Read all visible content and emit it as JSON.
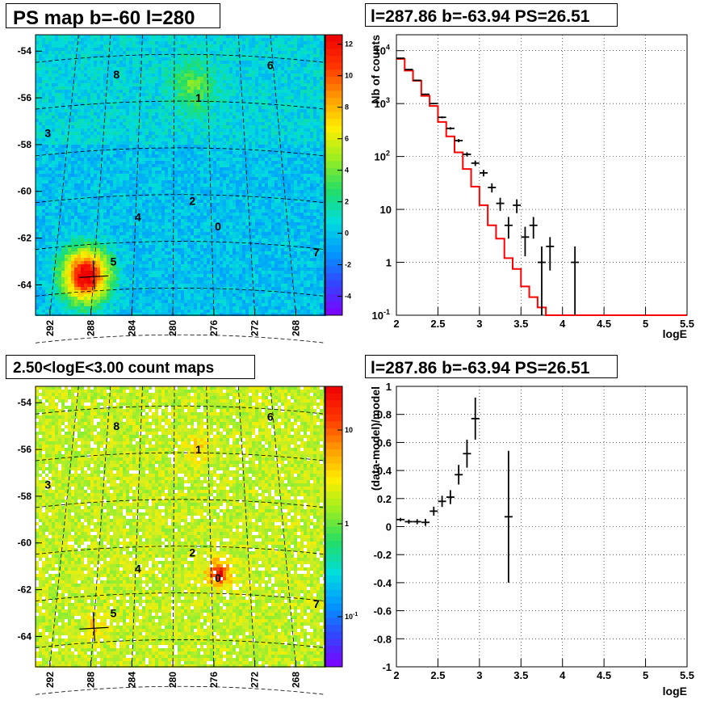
{
  "panels": {
    "ps_map": {
      "title": "PS map b=-60 l=280",
      "y_ticks": [
        "-54",
        "-56",
        "-58",
        "-60",
        "-62",
        "-64"
      ],
      "x_ticks": [
        "292",
        "288",
        "284",
        "280",
        "276",
        "272",
        "268"
      ],
      "colorbar_ticks": [
        "12",
        "10",
        "8",
        "6",
        "4",
        "2",
        "0",
        "-2",
        "-4"
      ],
      "source_labels": [
        "6",
        "8",
        "1",
        "3",
        "2",
        "4",
        "0",
        "7",
        "5"
      ]
    },
    "count_map": {
      "title": "2.50<logE<3.00 count maps",
      "y_ticks": [
        "-54",
        "-56",
        "-58",
        "-60",
        "-62",
        "-64"
      ],
      "x_ticks": [
        "292",
        "288",
        "284",
        "280",
        "276",
        "272",
        "268"
      ],
      "colorbar_ticks": [
        "10",
        "1",
        "10"
      ],
      "colorbar_tick_sup": [
        "",
        "",
        "-1"
      ],
      "source_labels": [
        "6",
        "8",
        "1",
        "3",
        "2",
        "4",
        "0",
        "7",
        "5"
      ]
    },
    "spectrum": {
      "title": "l=287.86 b=-63.94 PS=26.51"
    },
    "residual": {
      "title": "l=287.86 b=-63.94 PS=26.51"
    }
  },
  "chart_data": [
    {
      "type": "heatmap",
      "title": "PS map b=-60 l=280",
      "xlabel": "",
      "ylabel": "",
      "x_ticks": [
        292,
        288,
        284,
        280,
        276,
        272,
        268
      ],
      "y_ticks": [
        -54,
        -56,
        -58,
        -60,
        -62,
        -64
      ],
      "z_range": [
        -5,
        12
      ],
      "z_ticks": [
        12,
        10,
        8,
        6,
        4,
        2,
        0,
        -2,
        -4
      ],
      "colormap": [
        "#7f00ff",
        "#3344ff",
        "#0099ff",
        "#00dddd",
        "#22dd66",
        "#99ee22",
        "#ffee00",
        "#ff9900",
        "#ff3300",
        "#ee0000"
      ],
      "background_level": 0.5,
      "hotspots": [
        {
          "l": 288.5,
          "b": -63.6,
          "peak": 12,
          "label": ""
        },
        {
          "l": 278,
          "b": -55.5,
          "peak": 3,
          "label": "1"
        }
      ]
    },
    {
      "type": "heatmap",
      "title": "2.50<logE<3.00 count maps",
      "xlabel": "",
      "ylabel": "",
      "x_ticks": [
        292,
        288,
        284,
        280,
        276,
        272,
        268
      ],
      "y_ticks": [
        -54,
        -56,
        -58,
        -60,
        -62,
        -64
      ],
      "log_z": true,
      "z_ticks": [
        "10",
        "1",
        "10^-1"
      ],
      "hotspots": [
        {
          "l": 277.5,
          "b": -56.0,
          "peak": 3,
          "label": "1"
        },
        {
          "l": 275.5,
          "b": -61.3,
          "peak": 8,
          "label": "0"
        },
        {
          "l": 287.5,
          "b": -63.6,
          "peak": 3,
          "label": ""
        }
      ]
    },
    {
      "type": "line",
      "title": "l=287.86 b=-63.94 PS=26.51",
      "xlabel": "logE",
      "ylabel": "Nb of counts",
      "xlim": [
        2,
        5.5
      ],
      "ylim": [
        0.1,
        20000
      ],
      "log_y": true,
      "grid": true,
      "x_ticks": [
        2,
        2.5,
        3,
        3.5,
        4,
        4.5,
        5,
        5.5
      ],
      "y_ticks": [
        0.1,
        1,
        10,
        100,
        1000,
        10000
      ],
      "y_tick_labels": [
        "10^-1",
        "1",
        "10",
        "10^2",
        "10^3",
        "10^4"
      ],
      "series": [
        {
          "color": "#ff0000",
          "bin_width": 0.1,
          "x": [
            2.0,
            2.1,
            2.2,
            2.3,
            2.4,
            2.5,
            2.6,
            2.7,
            2.8,
            2.9,
            3.0,
            3.1,
            3.2,
            3.3,
            3.4,
            3.5,
            3.6,
            3.7,
            3.8,
            3.9,
            4.0,
            4.1,
            4.2,
            4.3,
            4.4,
            4.5,
            4.6,
            4.7,
            4.8,
            4.9,
            5.0,
            5.1,
            5.2,
            5.3,
            5.4
          ],
          "y": [
            7000,
            4200,
            2700,
            1400,
            900,
            450,
            240,
            120,
            58,
            27,
            12,
            5,
            2.8,
            1.2,
            0.75,
            0.35,
            0.22,
            0.14,
            0.1,
            0.1,
            0.1,
            0.1,
            0.1,
            0.1,
            0.1,
            0.1,
            0.1,
            0.1,
            0.1,
            0.1,
            0.1,
            0.1,
            0.1,
            0.1,
            0.1
          ]
        },
        {
          "color": "#000000",
          "errorbars": true,
          "x": [
            2.05,
            2.15,
            2.25,
            2.35,
            2.45,
            2.55,
            2.65,
            2.75,
            2.85,
            2.95,
            3.05,
            3.15,
            3.25,
            3.35,
            3.45,
            3.55,
            3.65,
            3.75,
            3.85,
            4.15
          ],
          "y": [
            7200,
            4400,
            2750,
            1500,
            1000,
            550,
            340,
            200,
            110,
            75,
            49,
            26,
            13,
            5,
            12,
            3,
            5,
            1,
            2,
            1
          ],
          "err_low": [
            85,
            66,
            52,
            38,
            30,
            23,
            18,
            14,
            10,
            8.7,
            7,
            5.1,
            3.6,
            2.2,
            3.5,
            1.7,
            2.2,
            0.9,
            1.3,
            0.9
          ],
          "err_high": [
            85,
            66,
            52,
            38,
            30,
            23,
            18,
            14,
            10,
            8.7,
            7,
            5.1,
            3.6,
            2.2,
            3.5,
            1.7,
            2.2,
            1,
            1,
            1
          ]
        }
      ]
    },
    {
      "type": "scatter",
      "title": "l=287.86 b=-63.94 PS=26.51",
      "xlabel": "logE",
      "ylabel": "(data-model)/model",
      "xlim": [
        2,
        5.5
      ],
      "ylim": [
        -1,
        1
      ],
      "grid": true,
      "x_ticks": [
        2,
        2.5,
        3,
        3.5,
        4,
        4.5,
        5,
        5.5
      ],
      "y_ticks": [
        -1,
        -0.8,
        -0.6,
        -0.4,
        -0.2,
        0,
        0.2,
        0.4,
        0.6,
        0.8,
        1
      ],
      "x": [
        2.05,
        2.15,
        2.25,
        2.35,
        2.45,
        2.55,
        2.65,
        2.75,
        2.85,
        2.95,
        3.35
      ],
      "y": [
        0.05,
        0.035,
        0.035,
        0.03,
        0.11,
        0.18,
        0.21,
        0.37,
        0.52,
        0.77,
        0.07
      ],
      "err": [
        0.012,
        0.015,
        0.018,
        0.025,
        0.032,
        0.04,
        0.05,
        0.07,
        0.1,
        0.15,
        0.47
      ]
    }
  ]
}
